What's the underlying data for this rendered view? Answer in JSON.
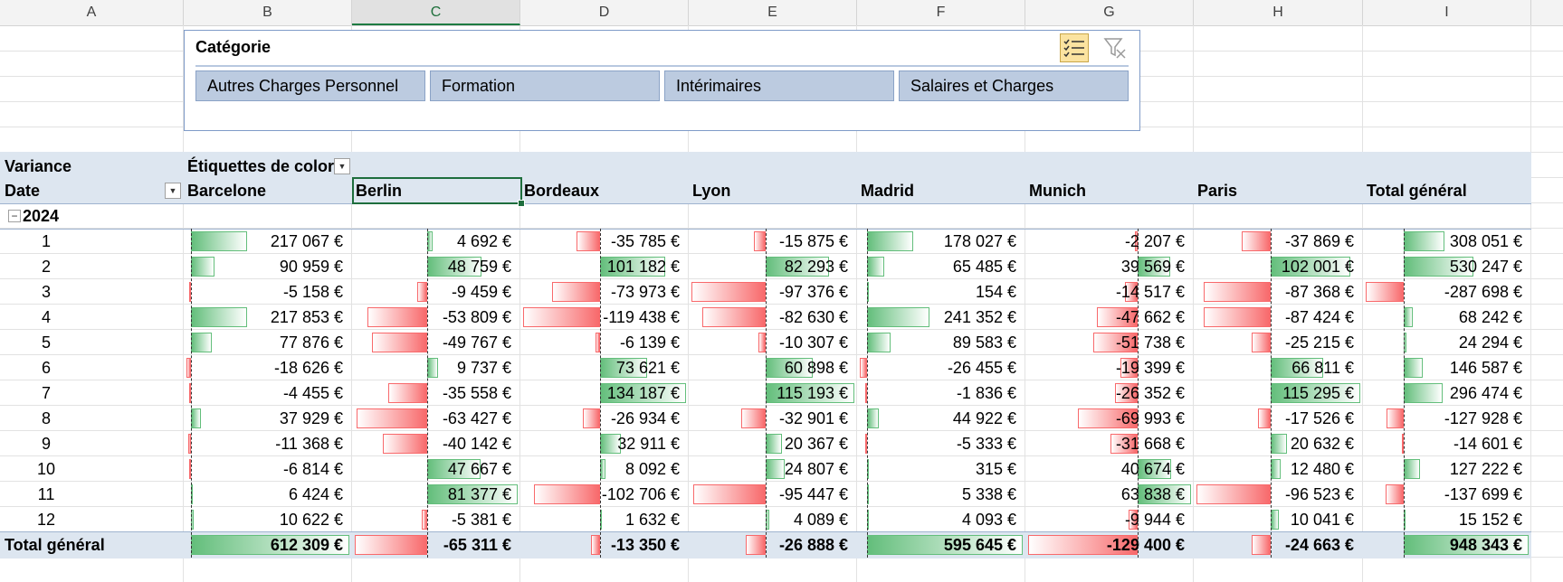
{
  "columns": [
    "A",
    "B",
    "C",
    "D",
    "E",
    "F",
    "G",
    "H",
    "I"
  ],
  "selected_column": "C",
  "slicer": {
    "title": "Catégorie",
    "items": [
      "Autres Charges Personnel",
      "Formation",
      "Intérimaires",
      "Salaires et Charges"
    ],
    "multi_select_icon": "multi-select-icon",
    "clear_filter_icon": "clear-filter-icon"
  },
  "pivot": {
    "values_label": "Variance",
    "columns_label": "Étiquettes de color",
    "rows_label": "Date",
    "year_label": "2024",
    "collapse_symbol": "−",
    "total_label": "Total général",
    "cities": [
      "Barcelone",
      "Berlin",
      "Bordeaux",
      "Lyon",
      "Madrid",
      "Munich",
      "Paris",
      "Total général"
    ],
    "months": [
      "1",
      "2",
      "3",
      "4",
      "5",
      "6",
      "7",
      "8",
      "9",
      "10",
      "11",
      "12"
    ],
    "rows": [
      [
        "217 067 €",
        "4 692 €",
        "-35 785 €",
        "-15 875 €",
        "178 027 €",
        "-2 207 €",
        "-37 869 €",
        "308 051 €"
      ],
      [
        "90 959 €",
        "48 759 €",
        "101 182 €",
        "82 293 €",
        "65 485 €",
        "39 569 €",
        "102 001 €",
        "530 247 €"
      ],
      [
        "-5 158 €",
        "-9 459 €",
        "-73 973 €",
        "-97 376 €",
        "154 €",
        "-14 517 €",
        "-87 368 €",
        "-287 698 €"
      ],
      [
        "217 853 €",
        "-53 809 €",
        "-119 438 €",
        "-82 630 €",
        "241 352 €",
        "-47 662 €",
        "-87 424 €",
        "68 242 €"
      ],
      [
        "77 876 €",
        "-49 767 €",
        "-6 139 €",
        "-10 307 €",
        "89 583 €",
        "-51 738 €",
        "-25 215 €",
        "24 294 €"
      ],
      [
        "-18 626 €",
        "9 737 €",
        "73 621 €",
        "60 898 €",
        "-26 455 €",
        "-19 399 €",
        "66 811 €",
        "146 587 €"
      ],
      [
        "-4 455 €",
        "-35 558 €",
        "134 187 €",
        "115 193 €",
        "-1 836 €",
        "-26 352 €",
        "115 295 €",
        "296 474 €"
      ],
      [
        "37 929 €",
        "-63 427 €",
        "-26 934 €",
        "-32 901 €",
        "44 922 €",
        "-69 993 €",
        "-17 526 €",
        "-127 928 €"
      ],
      [
        "-11 368 €",
        "-40 142 €",
        "32 911 €",
        "20 367 €",
        "-5 333 €",
        "-31 668 €",
        "20 632 €",
        "-14 601 €"
      ],
      [
        "-6 814 €",
        "47 667 €",
        "8 092 €",
        "24 807 €",
        "315 €",
        "40 674 €",
        "12 480 €",
        "127 222 €"
      ],
      [
        "6 424 €",
        "81 377 €",
        "-102 706 €",
        "-95 447 €",
        "5 338 €",
        "63 838 €",
        "-96 523 €",
        "-137 699 €"
      ],
      [
        "10 622 €",
        "-5 381 €",
        "1 632 €",
        "4 089 €",
        "4 093 €",
        "-9 944 €",
        "10 041 €",
        "15 152 €"
      ]
    ],
    "totals": [
      "612 309 €",
      "-65 311 €",
      "-13 350 €",
      "-26 888 €",
      "595 645 €",
      "-129 400 €",
      "-24 663 €",
      "948 343 €"
    ]
  },
  "colors": {
    "accent_green": "#1e7b43",
    "positive_bar": "#63be7b",
    "negative_bar": "#f8696b",
    "pivot_header_band": "#dde6f0",
    "slicer_item": "#bccbe0"
  }
}
